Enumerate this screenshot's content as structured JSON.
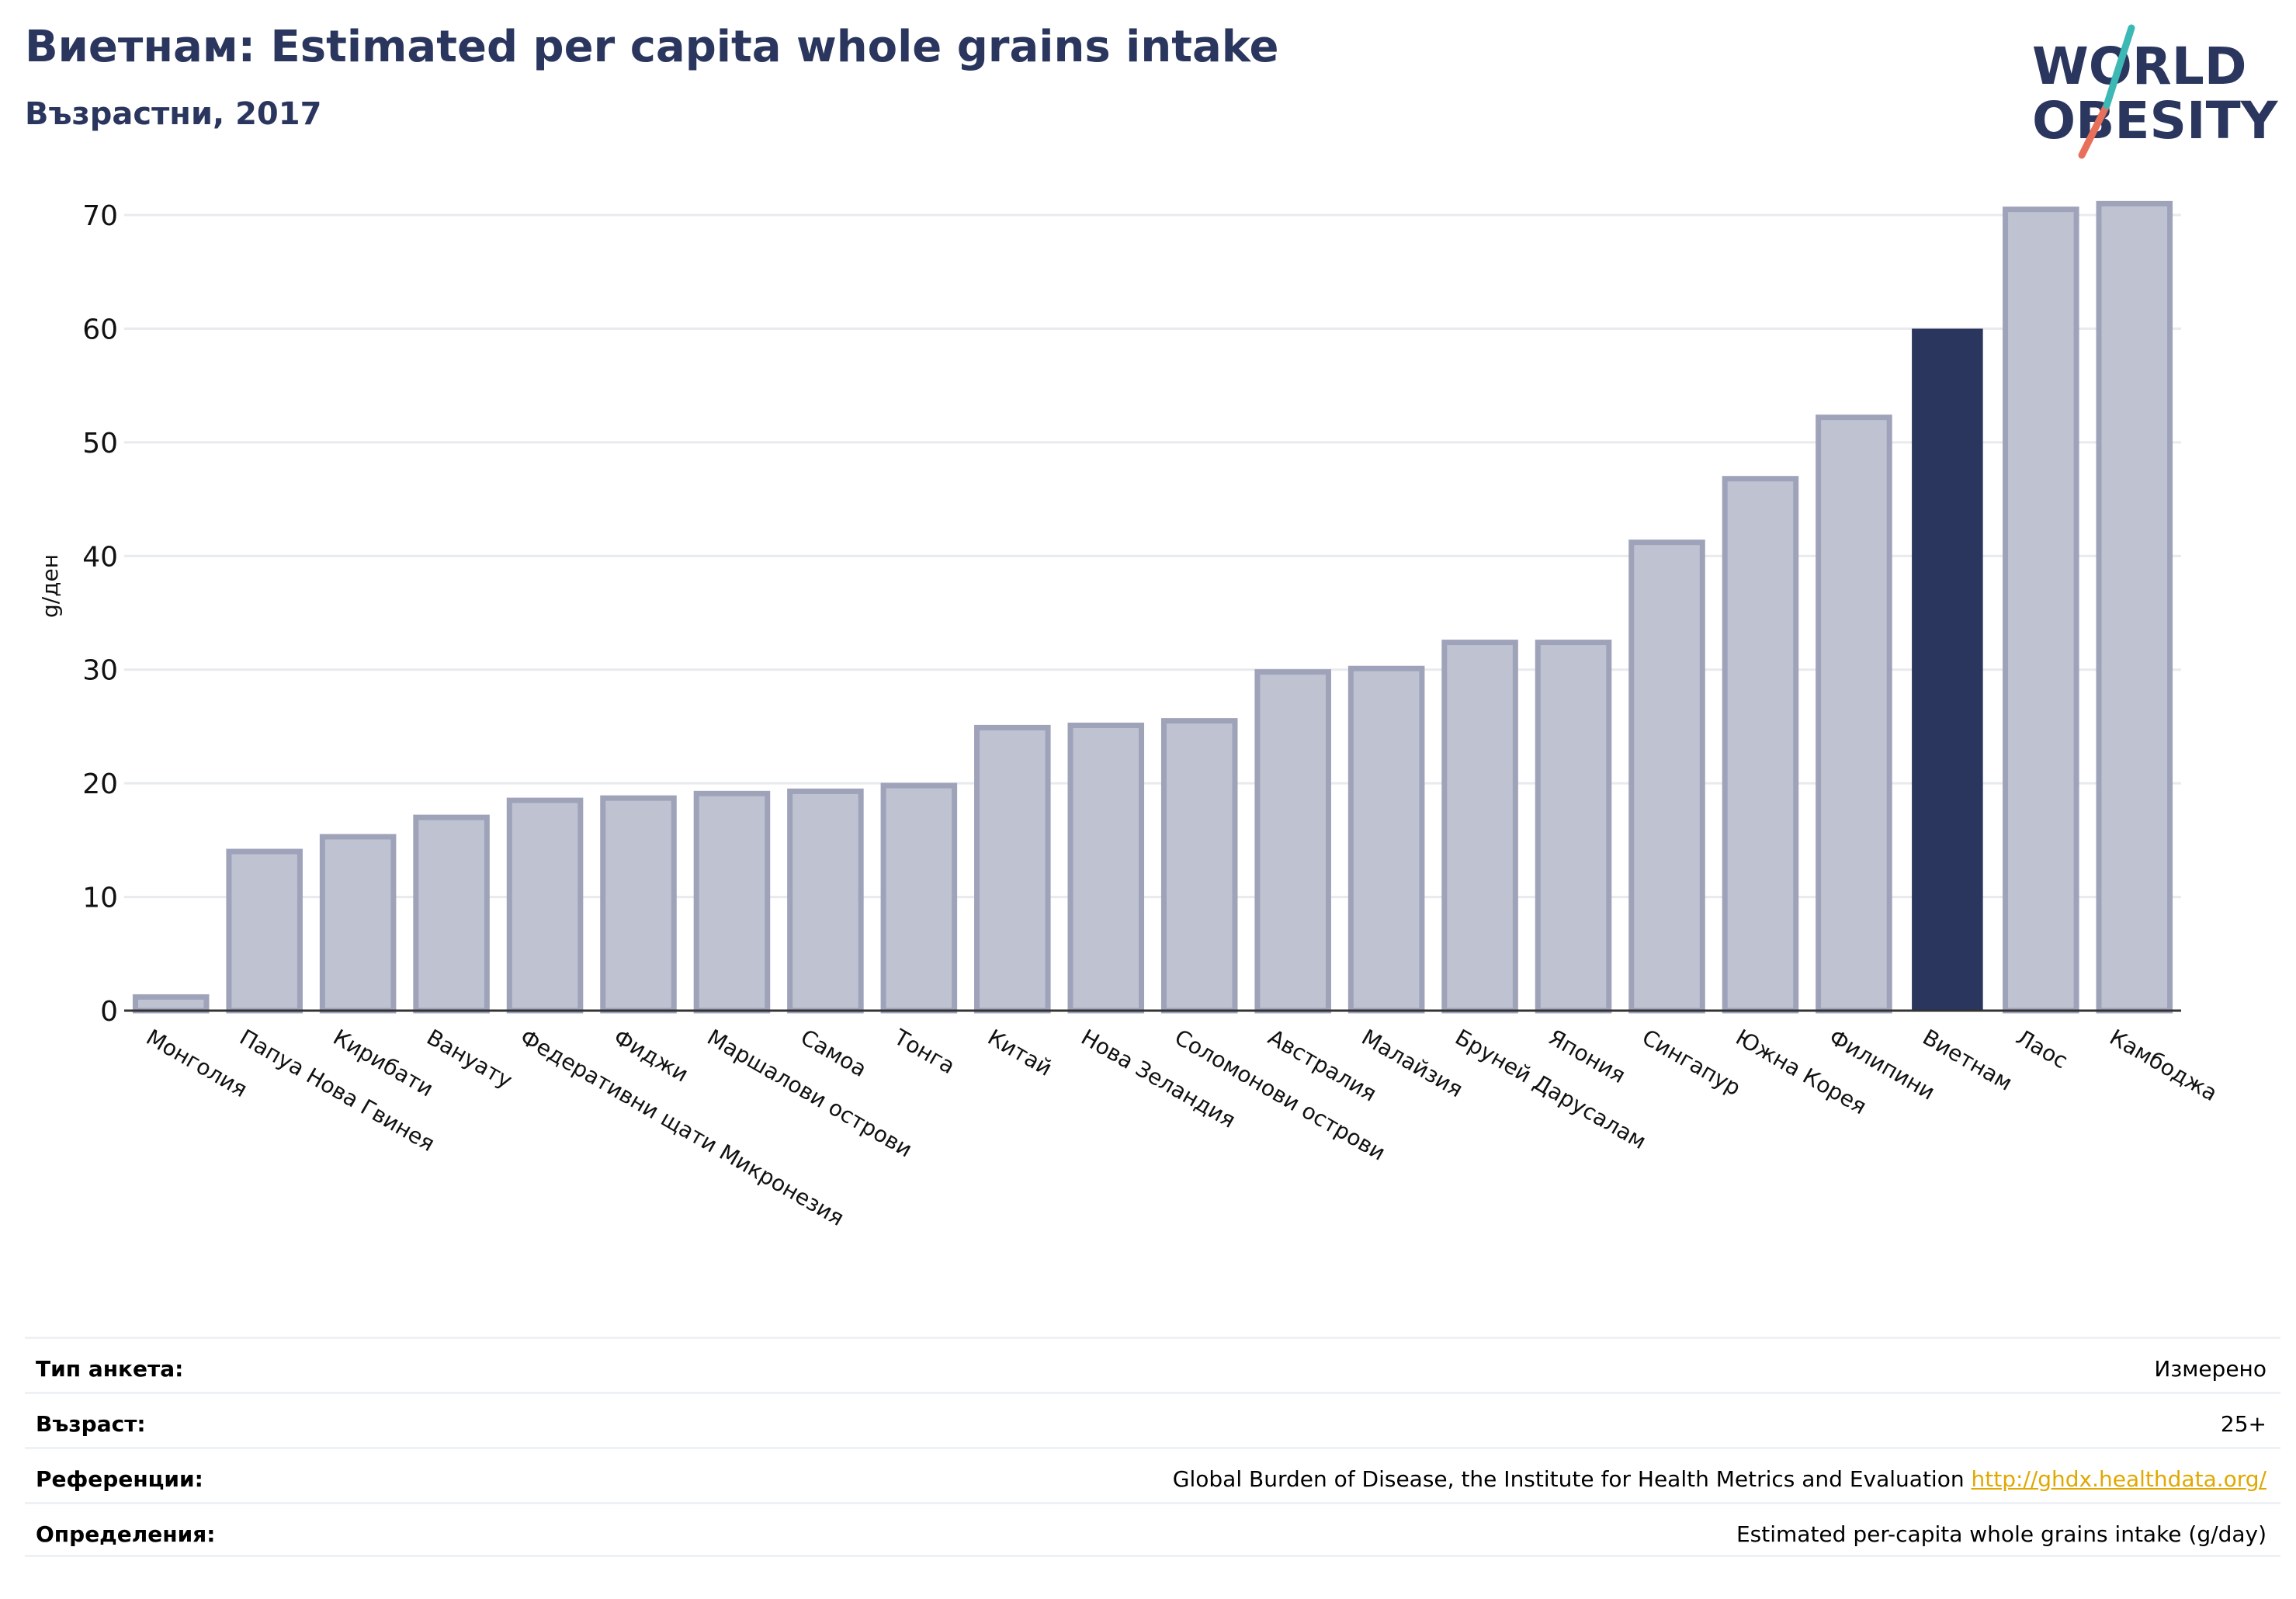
{
  "header": {
    "title": "Виетнам: Estimated per capita whole grains intake",
    "subtitle": "Възрастни, 2017"
  },
  "logo": {
    "line1": "WORLD",
    "line2": "OBESITY"
  },
  "colors": {
    "highlight": "#2a365e",
    "bar": "#bfc2d1",
    "bar_border": "#9fa3ba",
    "text_dark": "#2a365e"
  },
  "chart_data": {
    "type": "bar",
    "title": "Виетнам: Estimated per capita whole grains intake",
    "subtitle": "Възрастни, 2017",
    "ylabel": "g/ден",
    "xlabel": "",
    "ylim": [
      0,
      72
    ],
    "yticks": [
      0,
      10,
      20,
      30,
      40,
      50,
      60,
      70
    ],
    "grid": true,
    "highlight": "Виетнам",
    "categories": [
      "Монголия",
      "Папуа Нова Гвинея",
      "Кирибати",
      "Вануату",
      "Федеративни щати Микронезия",
      "Фиджи",
      "Маршалови острови",
      "Самоа",
      "Тонга",
      "Китай",
      "Нова Зеландия",
      "Соломонови острови",
      "Австралия",
      "Малайзия",
      "Бруней Дарусалам",
      "Япония",
      "Сингапур",
      "Южна Корея",
      "Филипини",
      "Виетнам",
      "Лаос",
      "Камбоджа"
    ],
    "values": [
      1.2,
      14.0,
      15.3,
      17.0,
      18.5,
      18.7,
      19.1,
      19.3,
      19.8,
      24.9,
      25.1,
      25.5,
      29.8,
      30.1,
      32.4,
      32.4,
      41.2,
      46.8,
      52.2,
      60.0,
      70.5,
      71.0
    ]
  },
  "metadata": {
    "rows": [
      {
        "label": "Тип анкета:",
        "value": "Измерено"
      },
      {
        "label": "Възраст:",
        "value": "25+"
      },
      {
        "label": "Референции:",
        "value": "Global Burden of Disease, the Institute for Health Metrics and Evaluation ",
        "link": "http://ghdx.healthdata.org/"
      },
      {
        "label": "Определения:",
        "value": "Estimated per-capita whole grains intake (g/day)"
      }
    ]
  }
}
